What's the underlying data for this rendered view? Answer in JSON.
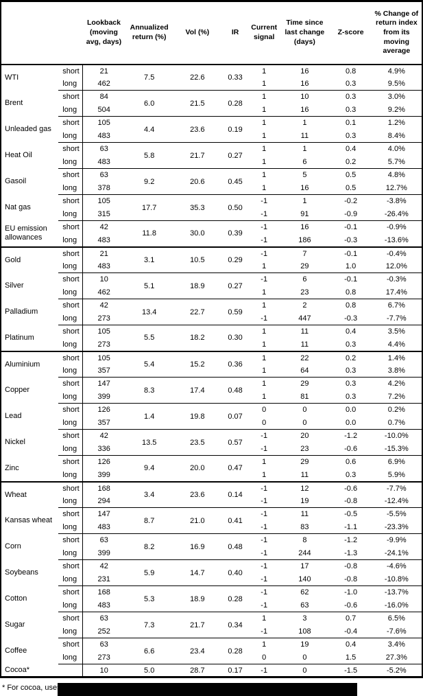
{
  "table": {
    "headers": [
      "Lookback (moving avg, days)",
      "Annualized return (%)",
      "Vol (%)",
      "IR",
      "Current signal",
      "Time since last change (days)",
      "Z-score",
      "% Change of return index from its moving average"
    ],
    "groups": [
      {
        "commodities": [
          {
            "name": "WTI",
            "annualized": "7.5",
            "vol": "22.6",
            "ir": "0.33",
            "rows": [
              {
                "side": "short",
                "lookback": "21",
                "signal": "1",
                "time": "16",
                "z": "0.8",
                "pct": "4.9%"
              },
              {
                "side": "long",
                "lookback": "462",
                "signal": "1",
                "time": "16",
                "z": "0.3",
                "pct": "9.5%"
              }
            ]
          },
          {
            "name": "Brent",
            "annualized": "6.0",
            "vol": "21.5",
            "ir": "0.28",
            "rows": [
              {
                "side": "short",
                "lookback": "84",
                "signal": "1",
                "time": "10",
                "z": "0.3",
                "pct": "3.0%"
              },
              {
                "side": "long",
                "lookback": "504",
                "signal": "1",
                "time": "16",
                "z": "0.3",
                "pct": "9.2%"
              }
            ]
          },
          {
            "name": "Unleaded gas",
            "annualized": "4.4",
            "vol": "23.6",
            "ir": "0.19",
            "rows": [
              {
                "side": "short",
                "lookback": "105",
                "signal": "1",
                "time": "1",
                "z": "0.1",
                "pct": "1.2%"
              },
              {
                "side": "long",
                "lookback": "483",
                "signal": "1",
                "time": "11",
                "z": "0.3",
                "pct": "8.4%"
              }
            ]
          },
          {
            "name": "Heat Oil",
            "annualized": "5.8",
            "vol": "21.7",
            "ir": "0.27",
            "rows": [
              {
                "side": "short",
                "lookback": "63",
                "signal": "1",
                "time": "1",
                "z": "0.4",
                "pct": "4.0%"
              },
              {
                "side": "long",
                "lookback": "483",
                "signal": "1",
                "time": "6",
                "z": "0.2",
                "pct": "5.7%"
              }
            ]
          },
          {
            "name": "Gasoil",
            "annualized": "9.2",
            "vol": "20.6",
            "ir": "0.45",
            "rows": [
              {
                "side": "short",
                "lookback": "63",
                "signal": "1",
                "time": "5",
                "z": "0.5",
                "pct": "4.8%"
              },
              {
                "side": "long",
                "lookback": "378",
                "signal": "1",
                "time": "16",
                "z": "0.5",
                "pct": "12.7%"
              }
            ]
          },
          {
            "name": "Nat gas",
            "annualized": "17.7",
            "vol": "35.3",
            "ir": "0.50",
            "rows": [
              {
                "side": "short",
                "lookback": "105",
                "signal": "-1",
                "time": "1",
                "z": "-0.2",
                "pct": "-3.8%"
              },
              {
                "side": "long",
                "lookback": "315",
                "signal": "-1",
                "time": "91",
                "z": "-0.9",
                "pct": "-26.4%"
              }
            ]
          },
          {
            "name": "EU emission allowances",
            "annualized": "11.8",
            "vol": "30.0",
            "ir": "0.39",
            "rows": [
              {
                "side": "short",
                "lookback": "42",
                "signal": "-1",
                "time": "16",
                "z": "-0.1",
                "pct": "-0.9%"
              },
              {
                "side": "long",
                "lookback": "483",
                "signal": "-1",
                "time": "186",
                "z": "-0.3",
                "pct": "-13.6%"
              }
            ]
          }
        ]
      },
      {
        "commodities": [
          {
            "name": "Gold",
            "annualized": "3.1",
            "vol": "10.5",
            "ir": "0.29",
            "rows": [
              {
                "side": "short",
                "lookback": "21",
                "signal": "-1",
                "time": "7",
                "z": "-0.1",
                "pct": "-0.4%"
              },
              {
                "side": "long",
                "lookback": "483",
                "signal": "1",
                "time": "29",
                "z": "1.0",
                "pct": "12.0%"
              }
            ]
          },
          {
            "name": "Silver",
            "annualized": "5.1",
            "vol": "18.9",
            "ir": "0.27",
            "rows": [
              {
                "side": "short",
                "lookback": "10",
                "signal": "-1",
                "time": "6",
                "z": "-0.1",
                "pct": "-0.3%"
              },
              {
                "side": "long",
                "lookback": "462",
                "signal": "1",
                "time": "23",
                "z": "0.8",
                "pct": "17.4%"
              }
            ]
          },
          {
            "name": "Palladium",
            "annualized": "13.4",
            "vol": "22.7",
            "ir": "0.59",
            "rows": [
              {
                "side": "short",
                "lookback": "42",
                "signal": "1",
                "time": "2",
                "z": "0.8",
                "pct": "6.7%"
              },
              {
                "side": "long",
                "lookback": "273",
                "signal": "-1",
                "time": "447",
                "z": "-0.3",
                "pct": "-7.7%"
              }
            ]
          },
          {
            "name": "Platinum",
            "annualized": "5.5",
            "vol": "18.2",
            "ir": "0.30",
            "rows": [
              {
                "side": "short",
                "lookback": "105",
                "signal": "1",
                "time": "11",
                "z": "0.4",
                "pct": "3.5%"
              },
              {
                "side": "long",
                "lookback": "273",
                "signal": "1",
                "time": "11",
                "z": "0.3",
                "pct": "4.4%"
              }
            ]
          }
        ]
      },
      {
        "commodities": [
          {
            "name": "Aluminium",
            "annualized": "5.4",
            "vol": "15.2",
            "ir": "0.36",
            "rows": [
              {
                "side": "short",
                "lookback": "105",
                "signal": "1",
                "time": "22",
                "z": "0.2",
                "pct": "1.4%"
              },
              {
                "side": "long",
                "lookback": "357",
                "signal": "1",
                "time": "64",
                "z": "0.3",
                "pct": "3.8%"
              }
            ]
          },
          {
            "name": "Copper",
            "annualized": "8.3",
            "vol": "17.4",
            "ir": "0.48",
            "rows": [
              {
                "side": "short",
                "lookback": "147",
                "signal": "1",
                "time": "29",
                "z": "0.3",
                "pct": "4.2%"
              },
              {
                "side": "long",
                "lookback": "399",
                "signal": "1",
                "time": "81",
                "z": "0.3",
                "pct": "7.2%"
              }
            ]
          },
          {
            "name": "Lead",
            "annualized": "1.4",
            "vol": "19.8",
            "ir": "0.07",
            "rows": [
              {
                "side": "short",
                "lookback": "126",
                "signal": "0",
                "time": "0",
                "z": "0.0",
                "pct": "0.2%"
              },
              {
                "side": "long",
                "lookback": "357",
                "signal": "0",
                "time": "0",
                "z": "0.0",
                "pct": "0.7%"
              }
            ]
          },
          {
            "name": "Nickel",
            "annualized": "13.5",
            "vol": "23.5",
            "ir": "0.57",
            "rows": [
              {
                "side": "short",
                "lookback": "42",
                "signal": "-1",
                "time": "20",
                "z": "-1.2",
                "pct": "-10.0%"
              },
              {
                "side": "long",
                "lookback": "336",
                "signal": "-1",
                "time": "23",
                "z": "-0.6",
                "pct": "-15.3%"
              }
            ]
          },
          {
            "name": "Zinc",
            "annualized": "9.4",
            "vol": "20.0",
            "ir": "0.47",
            "rows": [
              {
                "side": "short",
                "lookback": "126",
                "signal": "1",
                "time": "29",
                "z": "0.6",
                "pct": "6.9%"
              },
              {
                "side": "long",
                "lookback": "399",
                "signal": "1",
                "time": "11",
                "z": "0.3",
                "pct": "5.9%"
              }
            ]
          }
        ]
      },
      {
        "commodities": [
          {
            "name": "Wheat",
            "annualized": "3.4",
            "vol": "23.6",
            "ir": "0.14",
            "rows": [
              {
                "side": "short",
                "lookback": "168",
                "signal": "-1",
                "time": "12",
                "z": "-0.6",
                "pct": "-7.7%"
              },
              {
                "side": "long",
                "lookback": "294",
                "signal": "-1",
                "time": "19",
                "z": "-0.8",
                "pct": "-12.4%"
              }
            ]
          },
          {
            "name": "Kansas wheat",
            "annualized": "8.7",
            "vol": "21.0",
            "ir": "0.41",
            "rows": [
              {
                "side": "short",
                "lookback": "147",
                "signal": "-1",
                "time": "11",
                "z": "-0.5",
                "pct": "-5.5%"
              },
              {
                "side": "long",
                "lookback": "483",
                "signal": "-1",
                "time": "83",
                "z": "-1.1",
                "pct": "-23.3%"
              }
            ]
          },
          {
            "name": "Corn",
            "annualized": "8.2",
            "vol": "16.9",
            "ir": "0.48",
            "rows": [
              {
                "side": "short",
                "lookback": "63",
                "signal": "-1",
                "time": "8",
                "z": "-1.2",
                "pct": "-9.9%"
              },
              {
                "side": "long",
                "lookback": "399",
                "signal": "-1",
                "time": "244",
                "z": "-1.3",
                "pct": "-24.1%"
              }
            ]
          },
          {
            "name": "Soybeans",
            "annualized": "5.9",
            "vol": "14.7",
            "ir": "0.40",
            "rows": [
              {
                "side": "short",
                "lookback": "42",
                "signal": "-1",
                "time": "17",
                "z": "-0.8",
                "pct": "-4.6%"
              },
              {
                "side": "long",
                "lookback": "231",
                "signal": "-1",
                "time": "140",
                "z": "-0.8",
                "pct": "-10.8%"
              }
            ]
          },
          {
            "name": "Cotton",
            "annualized": "5.3",
            "vol": "18.9",
            "ir": "0.28",
            "rows": [
              {
                "side": "short",
                "lookback": "168",
                "signal": "-1",
                "time": "62",
                "z": "-1.0",
                "pct": "-13.7%"
              },
              {
                "side": "long",
                "lookback": "483",
                "signal": "-1",
                "time": "63",
                "z": "-0.6",
                "pct": "-16.0%"
              }
            ]
          },
          {
            "name": "Sugar",
            "annualized": "7.3",
            "vol": "21.7",
            "ir": "0.34",
            "rows": [
              {
                "side": "short",
                "lookback": "63",
                "signal": "1",
                "time": "3",
                "z": "0.7",
                "pct": "6.5%"
              },
              {
                "side": "long",
                "lookback": "252",
                "signal": "-1",
                "time": "108",
                "z": "-0.4",
                "pct": "-7.6%"
              }
            ]
          },
          {
            "name": "Coffee",
            "annualized": "6.6",
            "vol": "23.4",
            "ir": "0.28",
            "rows": [
              {
                "side": "short",
                "lookback": "63",
                "signal": "1",
                "time": "19",
                "z": "0.4",
                "pct": "3.4%"
              },
              {
                "side": "long",
                "lookback": "273",
                "signal": "0",
                "time": "0",
                "z": "1.5",
                "pct": "27.3%"
              }
            ]
          },
          {
            "name": "Cocoa*",
            "annualized": "5.0",
            "vol": "28.7",
            "ir": "0.17",
            "rows": [
              {
                "side": "",
                "lookback": "10",
                "signal": "-1",
                "time": "0",
                "z": "-1.5",
                "pct": "-5.2%"
              }
            ]
          }
        ]
      }
    ]
  },
  "footnote": {
    "text": "* For cocoa, uses"
  }
}
